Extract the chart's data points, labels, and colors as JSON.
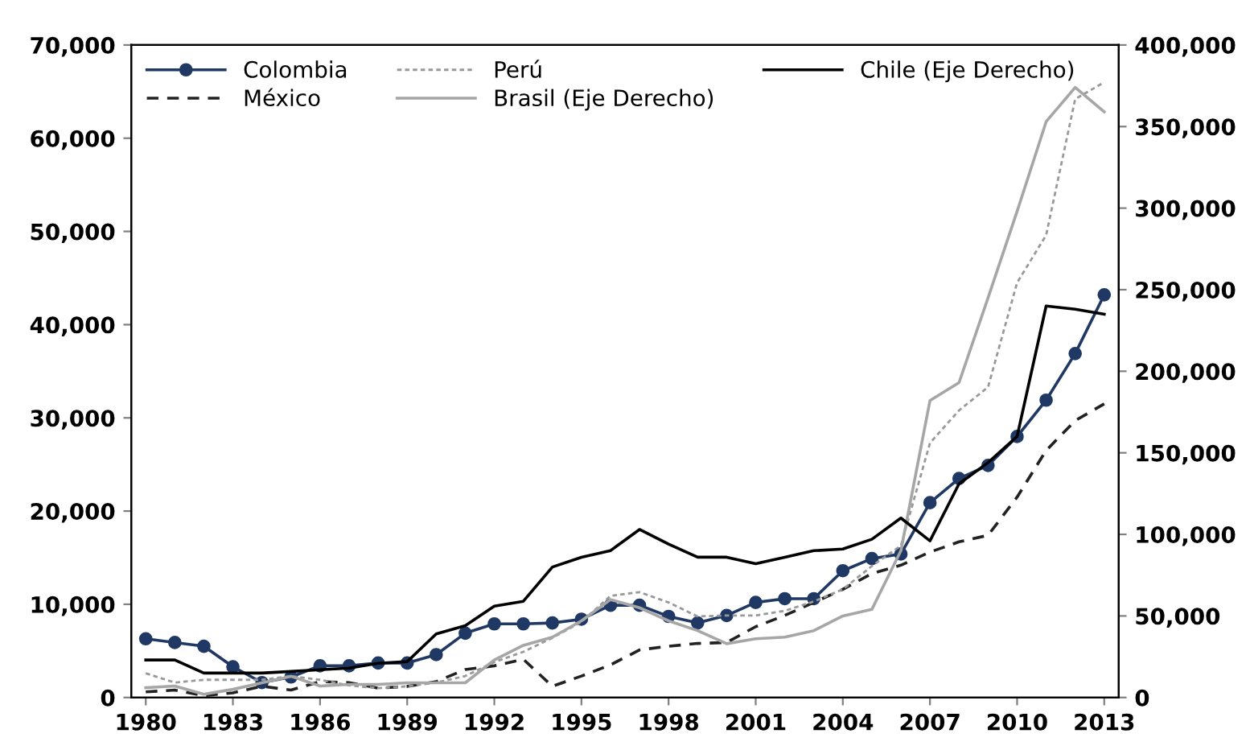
{
  "chart_data": {
    "type": "line",
    "x": [
      1980,
      1981,
      1982,
      1983,
      1984,
      1985,
      1986,
      1987,
      1988,
      1989,
      1990,
      1991,
      1992,
      1993,
      1994,
      1995,
      1996,
      1997,
      1998,
      1999,
      2000,
      2001,
      2002,
      2003,
      2004,
      2005,
      2006,
      2007,
      2008,
      2009,
      2010,
      2011,
      2012,
      2013
    ],
    "series": [
      {
        "name": "Colombia",
        "color": "#1f3864",
        "marker": "circle",
        "line_style": "solid",
        "values": [
          6300,
          5900,
          5500,
          3300,
          1600,
          2200,
          3400,
          3400,
          3700,
          3700,
          4600,
          6900,
          7900,
          7900,
          8000,
          8400,
          9900,
          9900,
          8700,
          8000,
          8800,
          10200,
          10600,
          10600,
          13600,
          14900,
          15400,
          20900,
          23500,
          24900,
          28000,
          31900,
          36900,
          43200
        ]
      },
      {
        "name": "México",
        "color": "#222222",
        "line_style": "dashed",
        "values": [
          600,
          800,
          200,
          500,
          1200,
          800,
          1700,
          1600,
          1000,
          1200,
          1700,
          3000,
          3400,
          4100,
          1200,
          2300,
          3500,
          5100,
          5500,
          5800,
          5900,
          7600,
          8800,
          10200,
          11600,
          13300,
          14200,
          15600,
          16700,
          17400,
          21500,
          26500,
          29700,
          31500
        ]
      },
      {
        "name": "Perú",
        "color": "#999999",
        "line_style": "dotted",
        "values": [
          2600,
          1600,
          1900,
          1900,
          1900,
          2300,
          1900,
          1300,
          1000,
          1200,
          1600,
          2300,
          3800,
          4900,
          6400,
          8100,
          10900,
          11300,
          10200,
          8700,
          8800,
          8800,
          9300,
          10300,
          11600,
          14100,
          16300,
          27300,
          30800,
          33300,
          44500,
          49600,
          64200,
          66000
        ]
      },
      {
        "name": "Brasil (Eje Derecho)",
        "color": "#a6a6a6",
        "axis": "y2",
        "line_style": "solid",
        "values": [
          6000,
          7000,
          2000,
          5000,
          9000,
          13000,
          7000,
          8000,
          8000,
          9000,
          9000,
          9000,
          23000,
          32000,
          37000,
          47000,
          60000,
          55000,
          47000,
          41000,
          33000,
          36000,
          37000,
          41000,
          50000,
          54000,
          90000,
          182000,
          193000,
          245000,
          298000,
          353000,
          374000,
          359000
        ]
      },
      {
        "name": "Chile (Eje Derecho)",
        "color": "#000000",
        "axis": "y2",
        "line_style": "solid",
        "values": [
          23000,
          23000,
          15000,
          15000,
          15000,
          16000,
          17000,
          18000,
          21000,
          22000,
          39000,
          44000,
          56000,
          59000,
          80000,
          86000,
          90000,
          103000,
          94000,
          86000,
          86000,
          82000,
          86000,
          90000,
          91000,
          97000,
          110000,
          96000,
          131000,
          144000,
          160000,
          240000,
          238000,
          235000
        ]
      }
    ],
    "xlim": [
      1979.5,
      2013.5
    ],
    "xticks": [
      1980,
      1983,
      1986,
      1989,
      1992,
      1995,
      1998,
      2001,
      2004,
      2007,
      2010,
      2013
    ],
    "ylim": [
      0,
      70000
    ],
    "yticks": [
      {
        "value": 0,
        "label": "0"
      },
      {
        "value": 10000,
        "label": "10,000"
      },
      {
        "value": 20000,
        "label": "20,000"
      },
      {
        "value": 30000,
        "label": "30,000"
      },
      {
        "value": 40000,
        "label": "40,000"
      },
      {
        "value": 50000,
        "label": "50,000"
      },
      {
        "value": 60000,
        "label": "60,000"
      },
      {
        "value": 70000,
        "label": "70,000"
      }
    ],
    "y2lim": [
      0,
      400000
    ],
    "y2ticks": [
      {
        "value": 0,
        "label": "0"
      },
      {
        "value": 50000,
        "label": "50,000"
      },
      {
        "value": 100000,
        "label": "100,000"
      },
      {
        "value": 150000,
        "label": "150,000"
      },
      {
        "value": 200000,
        "label": "200,000"
      },
      {
        "value": 250000,
        "label": "250,000"
      },
      {
        "value": 300000,
        "label": "300,000"
      },
      {
        "value": 350000,
        "label": "350,000"
      },
      {
        "value": 400000,
        "label": "400,000"
      }
    ],
    "grid": false,
    "legend": "top left"
  }
}
